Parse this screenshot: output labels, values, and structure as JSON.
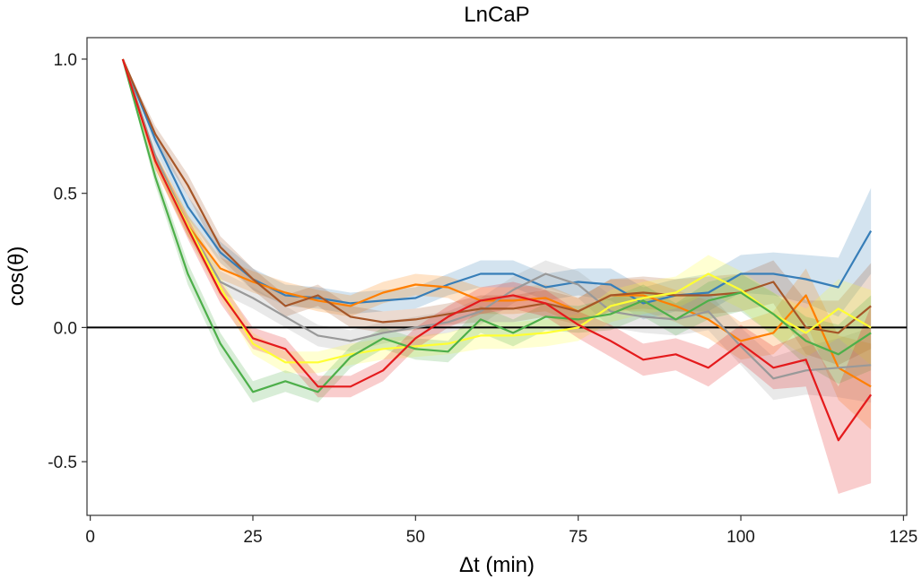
{
  "chart_data": {
    "type": "line",
    "title": "LnCaP",
    "xlabel": "Δt (min)",
    "ylabel": "cos(θ)",
    "xlim": [
      -0.5,
      125.5
    ],
    "ylim": [
      -0.7,
      1.08
    ],
    "xticks": [
      0,
      25,
      50,
      75,
      100,
      125
    ],
    "yticks": [
      -0.5,
      0.0,
      0.5,
      1.0
    ],
    "xtick_labels": [
      "0",
      "25",
      "50",
      "75",
      "100",
      "125"
    ],
    "ytick_labels": [
      "-0.5",
      "0.0",
      "0.5",
      "1.0"
    ],
    "reference_line": 0,
    "legend": "none",
    "grid": false,
    "x": [
      5,
      10,
      15,
      20,
      25,
      30,
      35,
      40,
      45,
      50,
      55,
      60,
      65,
      70,
      75,
      80,
      85,
      90,
      95,
      100,
      105,
      110,
      115,
      120
    ],
    "series": [
      {
        "color": "#377EB8",
        "values": [
          1.0,
          0.7,
          0.45,
          0.28,
          0.18,
          0.12,
          0.11,
          0.09,
          0.1,
          0.11,
          0.16,
          0.2,
          0.2,
          0.15,
          0.17,
          0.16,
          0.09,
          0.12,
          0.13,
          0.2,
          0.2,
          0.18,
          0.15,
          0.36
        ],
        "band": [
          0.0,
          0.03,
          0.04,
          0.04,
          0.04,
          0.04,
          0.04,
          0.04,
          0.04,
          0.04,
          0.04,
          0.05,
          0.05,
          0.05,
          0.05,
          0.06,
          0.06,
          0.06,
          0.07,
          0.07,
          0.08,
          0.09,
          0.11,
          0.16
        ]
      },
      {
        "color": "#FF7F00",
        "values": [
          1.0,
          0.62,
          0.38,
          0.22,
          0.17,
          0.13,
          0.1,
          0.08,
          0.13,
          0.16,
          0.15,
          0.1,
          0.1,
          0.11,
          0.06,
          0.12,
          0.12,
          0.08,
          0.03,
          -0.05,
          -0.02,
          0.12,
          -0.15,
          -0.22
        ],
        "band": [
          0.0,
          0.03,
          0.04,
          0.04,
          0.04,
          0.04,
          0.04,
          0.04,
          0.04,
          0.04,
          0.04,
          0.05,
          0.05,
          0.05,
          0.05,
          0.06,
          0.06,
          0.06,
          0.07,
          0.07,
          0.08,
          0.1,
          0.12,
          0.16
        ]
      },
      {
        "color": "#999999",
        "values": [
          1.0,
          0.64,
          0.38,
          0.17,
          0.11,
          0.04,
          -0.03,
          -0.05,
          -0.02,
          0.0,
          0.02,
          0.06,
          0.14,
          0.2,
          0.16,
          0.06,
          0.04,
          0.03,
          0.06,
          -0.07,
          -0.19,
          -0.16,
          -0.15,
          -0.14
        ],
        "band": [
          0.0,
          0.03,
          0.04,
          0.04,
          0.04,
          0.04,
          0.04,
          0.04,
          0.04,
          0.04,
          0.04,
          0.05,
          0.05,
          0.05,
          0.05,
          0.06,
          0.06,
          0.06,
          0.07,
          0.07,
          0.08,
          0.09,
          0.11,
          0.14
        ]
      },
      {
        "color": "#A65628",
        "values": [
          1.0,
          0.72,
          0.53,
          0.3,
          0.18,
          0.08,
          0.12,
          0.04,
          0.02,
          0.03,
          0.05,
          0.07,
          0.07,
          0.09,
          0.06,
          0.12,
          0.13,
          0.12,
          0.12,
          0.13,
          0.17,
          0.0,
          -0.02,
          0.08
        ],
        "band": [
          0.0,
          0.03,
          0.04,
          0.04,
          0.04,
          0.04,
          0.04,
          0.04,
          0.04,
          0.04,
          0.04,
          0.05,
          0.05,
          0.05,
          0.05,
          0.06,
          0.06,
          0.06,
          0.07,
          0.07,
          0.08,
          0.1,
          0.12,
          0.16
        ]
      },
      {
        "color": "#FFFF33",
        "values": [
          1.0,
          0.62,
          0.38,
          0.15,
          -0.06,
          -0.13,
          -0.13,
          -0.1,
          -0.08,
          -0.07,
          -0.06,
          -0.03,
          -0.03,
          -0.02,
          0.0,
          0.08,
          0.11,
          0.13,
          0.2,
          0.14,
          0.05,
          -0.02,
          0.07,
          0.0
        ],
        "band": [
          0.0,
          0.03,
          0.04,
          0.04,
          0.04,
          0.04,
          0.04,
          0.04,
          0.04,
          0.04,
          0.04,
          0.05,
          0.05,
          0.05,
          0.05,
          0.06,
          0.06,
          0.06,
          0.07,
          0.07,
          0.08,
          0.09,
          0.11,
          0.14
        ]
      },
      {
        "color": "#4DAF4A",
        "values": [
          1.0,
          0.56,
          0.2,
          -0.06,
          -0.24,
          -0.2,
          -0.24,
          -0.11,
          -0.04,
          -0.08,
          -0.09,
          0.03,
          -0.02,
          0.04,
          0.03,
          0.05,
          0.1,
          0.03,
          0.1,
          0.13,
          0.05,
          -0.05,
          -0.1,
          -0.02
        ],
        "band": [
          0.0,
          0.03,
          0.04,
          0.04,
          0.04,
          0.04,
          0.04,
          0.04,
          0.04,
          0.04,
          0.04,
          0.05,
          0.05,
          0.05,
          0.05,
          0.06,
          0.06,
          0.06,
          0.07,
          0.07,
          0.08,
          0.09,
          0.11,
          0.14
        ]
      },
      {
        "color": "#E41A1C",
        "values": [
          1.0,
          0.62,
          0.37,
          0.13,
          -0.04,
          -0.08,
          -0.22,
          -0.22,
          -0.16,
          -0.04,
          0.04,
          0.1,
          0.12,
          0.09,
          0.01,
          -0.05,
          -0.12,
          -0.1,
          -0.15,
          -0.06,
          -0.15,
          -0.12,
          -0.42,
          -0.25
        ],
        "band": [
          0.0,
          0.03,
          0.04,
          0.04,
          0.04,
          0.04,
          0.04,
          0.04,
          0.04,
          0.04,
          0.04,
          0.05,
          0.05,
          0.05,
          0.05,
          0.06,
          0.06,
          0.06,
          0.07,
          0.07,
          0.08,
          0.1,
          0.2,
          0.33
        ]
      }
    ]
  }
}
